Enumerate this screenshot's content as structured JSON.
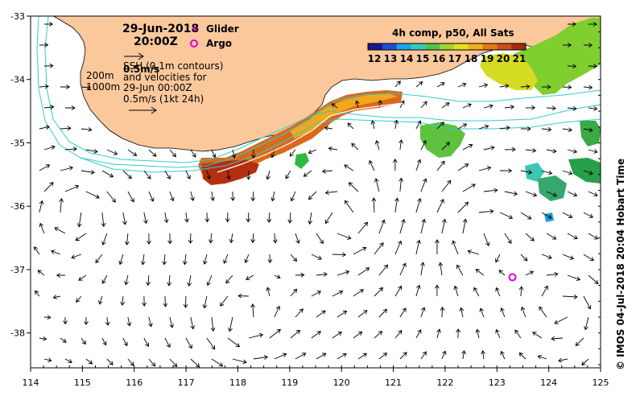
{
  "header": {
    "date": "29-Jun-2018",
    "time": "20:00Z",
    "legend_glider": "Glider",
    "legend_argo": "Argo"
  },
  "notes": {
    "speed_label": "0.5m/s",
    "line1": "SSH (0.1m contours)",
    "line2": "and velocities for",
    "line3": "29-Jun 00:00Z",
    "line4": "0.5m/s (1kt 24h)",
    "contour_200": "200m",
    "contour_1000": "1000m"
  },
  "colorbar": {
    "title": "4h comp, p50, All Sats",
    "ticks": [
      "12",
      "13",
      "14",
      "15",
      "16",
      "17",
      "18",
      "19",
      "20",
      "21"
    ],
    "colors": [
      "#1a1a8c",
      "#1f4fd1",
      "#1ea3e6",
      "#33ccb8",
      "#52c24a",
      "#9ed62e",
      "#e6e020",
      "#f0b020",
      "#e67a14",
      "#c9501c",
      "#a32a10"
    ]
  },
  "axes": {
    "x_ticks": [
      "114",
      "115",
      "116",
      "117",
      "118",
      "119",
      "120",
      "121",
      "122",
      "123",
      "124",
      "125"
    ],
    "y_ticks": [
      "-33",
      "-34",
      "-35",
      "-36",
      "-37",
      "-38"
    ],
    "x_range": [
      114,
      125
    ],
    "y_range": [
      -38.55,
      -33
    ]
  },
  "markers": {
    "argo": {
      "lon": 123.3,
      "lat": -37.12
    },
    "colors": {
      "glider": "#e000e0",
      "argo": "#e000e0",
      "land": "#fbc89c",
      "contour": "#33cccc"
    }
  },
  "credit": "© IMOS 04-Jul-2018 20:04 Hobart Time"
}
